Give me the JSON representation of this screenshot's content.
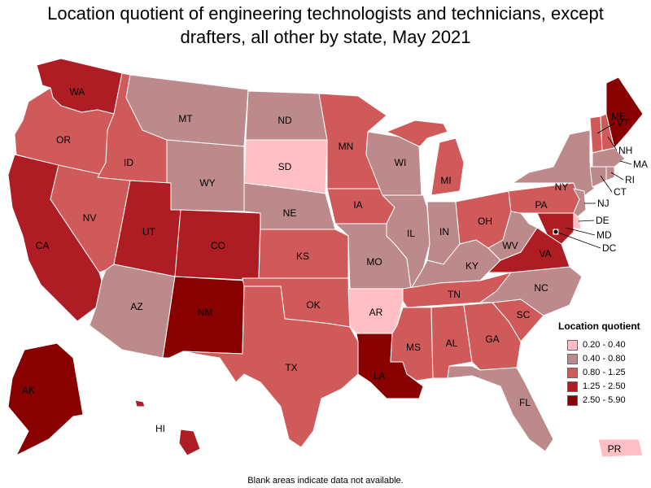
{
  "title_line1": "Location quotient of engineering technologists and technicians, except",
  "title_line2": "drafters, all other by state, May 2021",
  "legend": {
    "title": "Location quotient",
    "items": [
      {
        "label": "0.20 - 0.40",
        "color": "#ffbfc4"
      },
      {
        "label": "0.40 - 0.80",
        "color": "#bc8a8a"
      },
      {
        "label": "0.80 - 1.25",
        "color": "#d05a5a"
      },
      {
        "label": "1.25 - 2.50",
        "color": "#ae1c24"
      },
      {
        "label": "2.50 - 5.90",
        "color": "#880000"
      }
    ]
  },
  "footer": "Blank areas indicate data not available.",
  "states": [
    {
      "abbr": "WA",
      "class": 3
    },
    {
      "abbr": "OR",
      "class": 2
    },
    {
      "abbr": "CA",
      "class": 3
    },
    {
      "abbr": "NV",
      "class": 2
    },
    {
      "abbr": "ID",
      "class": 2
    },
    {
      "abbr": "MT",
      "class": 1
    },
    {
      "abbr": "WY",
      "class": 1
    },
    {
      "abbr": "UT",
      "class": 3
    },
    {
      "abbr": "AZ",
      "class": 1
    },
    {
      "abbr": "CO",
      "class": 3
    },
    {
      "abbr": "NM",
      "class": 4
    },
    {
      "abbr": "ND",
      "class": 1
    },
    {
      "abbr": "SD",
      "class": 0
    },
    {
      "abbr": "NE",
      "class": 1
    },
    {
      "abbr": "KS",
      "class": 2
    },
    {
      "abbr": "OK",
      "class": 2
    },
    {
      "abbr": "TX",
      "class": 2
    },
    {
      "abbr": "MN",
      "class": 2
    },
    {
      "abbr": "IA",
      "class": 2
    },
    {
      "abbr": "MO",
      "class": 1
    },
    {
      "abbr": "AR",
      "class": 0
    },
    {
      "abbr": "LA",
      "class": 4
    },
    {
      "abbr": "WI",
      "class": 1
    },
    {
      "abbr": "IL",
      "class": 1
    },
    {
      "abbr": "MI",
      "class": 2
    },
    {
      "abbr": "IN",
      "class": 1
    },
    {
      "abbr": "OH",
      "class": 2
    },
    {
      "abbr": "KY",
      "class": 1
    },
    {
      "abbr": "TN",
      "class": 2
    },
    {
      "abbr": "MS",
      "class": 2
    },
    {
      "abbr": "AL",
      "class": 2
    },
    {
      "abbr": "GA",
      "class": 2
    },
    {
      "abbr": "FL",
      "class": 1
    },
    {
      "abbr": "SC",
      "class": 2
    },
    {
      "abbr": "NC",
      "class": 1
    },
    {
      "abbr": "VA",
      "class": 3
    },
    {
      "abbr": "WV",
      "class": 1
    },
    {
      "abbr": "PA",
      "class": 2
    },
    {
      "abbr": "NY",
      "class": 1
    },
    {
      "abbr": "VT",
      "class": 2
    },
    {
      "abbr": "NH",
      "class": 2
    },
    {
      "abbr": "ME",
      "class": 4
    },
    {
      "abbr": "MA",
      "class": 1
    },
    {
      "abbr": "CT",
      "class": 1
    },
    {
      "abbr": "RI",
      "class": 1
    },
    {
      "abbr": "NJ",
      "class": 1
    },
    {
      "abbr": "DE",
      "class": 0
    },
    {
      "abbr": "MD",
      "class": 3
    },
    {
      "abbr": "DC",
      "class": 4
    },
    {
      "abbr": "AK",
      "class": 4
    },
    {
      "abbr": "HI",
      "class": 3
    },
    {
      "abbr": "PR",
      "class": 0
    }
  ]
}
